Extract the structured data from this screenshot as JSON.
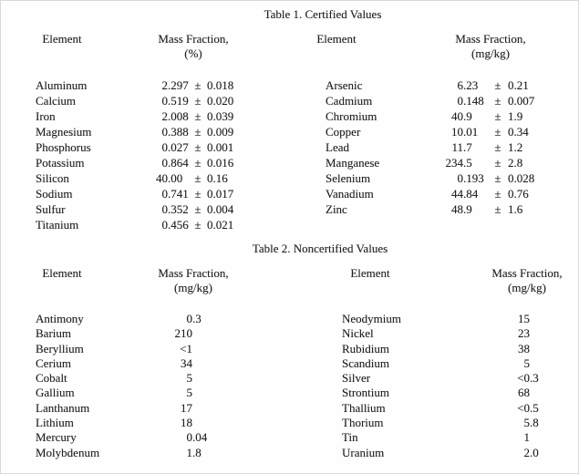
{
  "page": {
    "background": "#fefefe",
    "border_color": "#d8d8d8",
    "text_color": "#1e1e1e"
  },
  "table1": {
    "title": "Table 1. Certified Values",
    "pm": "±",
    "header": {
      "element_left": "Element",
      "mass_left": "Mass Fraction,",
      "unit_left": "(%)",
      "element_right": "Element",
      "mass_right": "Mass Fraction,",
      "unit_right": "(mg/kg)"
    },
    "left_rows": [
      {
        "element": "Aluminum",
        "value": "2.297",
        "uncertainty": "0.018"
      },
      {
        "element": "Calcium",
        "value": "0.519",
        "uncertainty": "0.020"
      },
      {
        "element": "Iron",
        "value": "2.008",
        "uncertainty": "0.039"
      },
      {
        "element": "Magnesium",
        "value": "0.388",
        "uncertainty": "0.009"
      },
      {
        "element": "Phosphorus",
        "value": "0.027",
        "uncertainty": "0.001"
      },
      {
        "element": "Potassium",
        "value": "0.864",
        "uncertainty": "0.016"
      },
      {
        "element": "Silicon",
        "value": "40.00",
        "uncertainty": "0.16"
      },
      {
        "element": "Sodium",
        "value": "0.741",
        "uncertainty": "0.017"
      },
      {
        "element": "Sulfur",
        "value": "0.352",
        "uncertainty": "0.004"
      },
      {
        "element": "Titanium",
        "value": "0.456",
        "uncertainty": "0.021"
      }
    ],
    "right_rows": [
      {
        "element": "Arsenic",
        "value": "6.23",
        "uncertainty": "0.21"
      },
      {
        "element": "Cadmium",
        "value": "0.148",
        "uncertainty": "0.007"
      },
      {
        "element": "Chromium",
        "value": "40.9",
        "uncertainty": "1.9"
      },
      {
        "element": "Copper",
        "value": "10.01",
        "uncertainty": "0.34"
      },
      {
        "element": "Lead",
        "value": "11.7",
        "uncertainty": "1.2"
      },
      {
        "element": "Manganese",
        "value": "234.5",
        "uncertainty": "2.8"
      },
      {
        "element": "Selenium",
        "value": "0.193",
        "uncertainty": "0.028"
      },
      {
        "element": "Vanadium",
        "value": "44.84",
        "uncertainty": "0.76"
      },
      {
        "element": "Zinc",
        "value": "48.9",
        "uncertainty": "1.6"
      }
    ]
  },
  "table2": {
    "title": "Table 2. Noncertified Values",
    "header": {
      "element_left": "Element",
      "mass_left": "Mass Fraction,",
      "unit_left": "(mg/kg)",
      "element_right": "Element",
      "mass_right": "Mass Fraction,",
      "unit_right": "(mg/kg)"
    },
    "left_rows": [
      {
        "element": "Antimony",
        "value": "0.3"
      },
      {
        "element": "Barium",
        "value": "210"
      },
      {
        "element": "Beryllium",
        "value": "<1"
      },
      {
        "element": "Cerium",
        "value": "34"
      },
      {
        "element": "Cobalt",
        "value": "5"
      },
      {
        "element": "Gallium",
        "value": "5"
      },
      {
        "element": "Lanthanum",
        "value": "17"
      },
      {
        "element": "Lithium",
        "value": "18"
      },
      {
        "element": "Mercury",
        "value": "0.04"
      },
      {
        "element": "Molybdenum",
        "value": "1.8"
      }
    ],
    "right_rows": [
      {
        "element": "Neodymium",
        "value": "15"
      },
      {
        "element": "Nickel",
        "value": "23"
      },
      {
        "element": "Rubidium",
        "value": "38"
      },
      {
        "element": "Scandium",
        "value": "5"
      },
      {
        "element": "Silver",
        "value": "<0.3"
      },
      {
        "element": "Strontium",
        "value": "68"
      },
      {
        "element": "Thallium",
        "value": "<0.5"
      },
      {
        "element": "Thorium",
        "value": "5.8"
      },
      {
        "element": "Tin",
        "value": "1"
      },
      {
        "element": "Uranium",
        "value": "2.0"
      }
    ]
  }
}
